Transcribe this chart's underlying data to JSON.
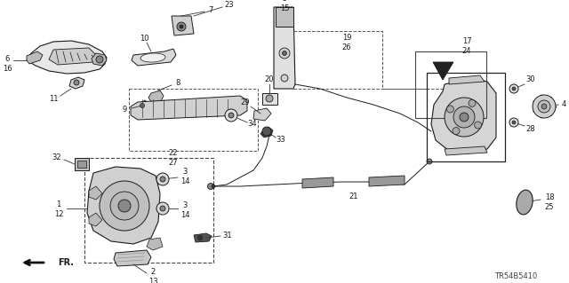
{
  "bg_color": "#ffffff",
  "line_color": "#1a1a1a",
  "part_code": "TR54B5410",
  "fig_width": 6.4,
  "fig_height": 3.19,
  "dpi": 100
}
